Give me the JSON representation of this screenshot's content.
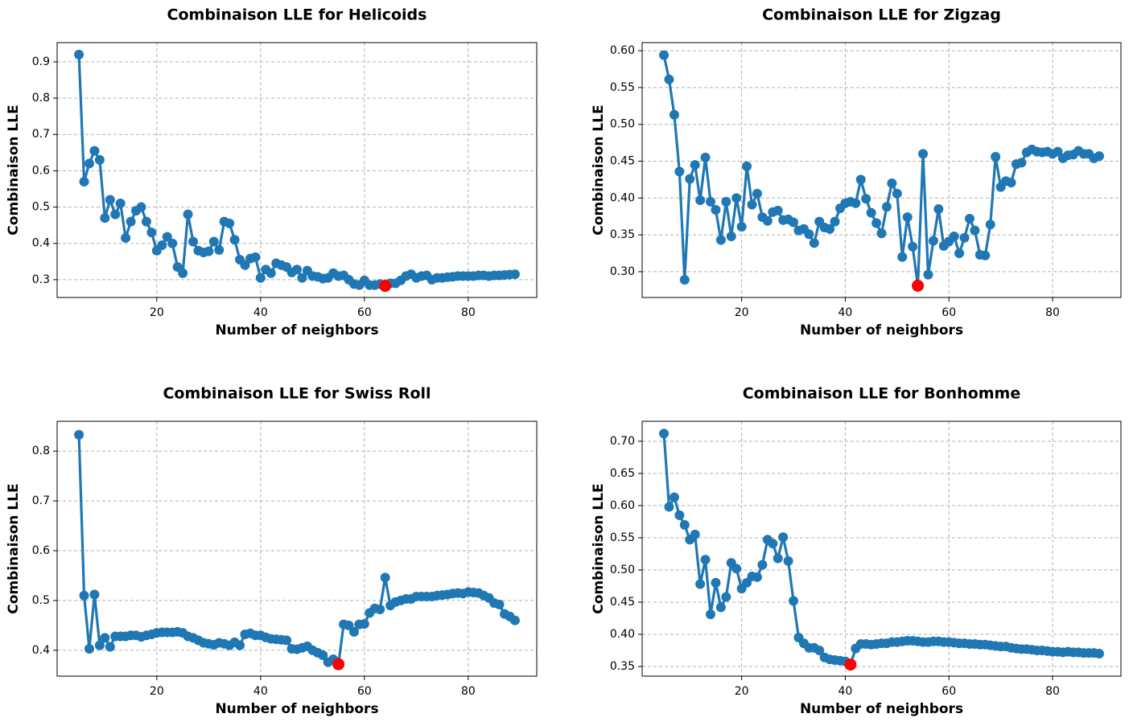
{
  "chart_data": [
    {
      "type": "line",
      "title": "Combinaison LLE for Helicoids",
      "xlabel": "Number of neighbors",
      "ylabel": "Combinaison LLE",
      "color": "#1f77b4",
      "grid": true,
      "x": [
        5,
        6,
        7,
        8,
        9,
        10,
        11,
        12,
        13,
        14,
        15,
        16,
        17,
        18,
        19,
        20,
        21,
        22,
        23,
        24,
        25,
        26,
        27,
        28,
        29,
        30,
        31,
        32,
        33,
        34,
        35,
        36,
        37,
        38,
        39,
        40,
        41,
        42,
        43,
        44,
        45,
        46,
        47,
        48,
        49,
        50,
        51,
        52,
        53,
        54,
        55,
        56,
        57,
        58,
        59,
        60,
        61,
        62,
        63,
        64,
        65,
        66,
        67,
        68,
        69,
        70,
        71,
        72,
        73,
        74,
        75,
        76,
        77,
        78,
        79,
        80,
        81,
        82,
        83,
        84,
        85,
        86,
        87,
        88,
        89
      ],
      "values": [
        0.92,
        0.57,
        0.62,
        0.655,
        0.63,
        0.47,
        0.52,
        0.48,
        0.51,
        0.415,
        0.46,
        0.49,
        0.5,
        0.46,
        0.43,
        0.38,
        0.395,
        0.418,
        0.4,
        0.335,
        0.318,
        0.48,
        0.405,
        0.38,
        0.375,
        0.378,
        0.405,
        0.382,
        0.46,
        0.455,
        0.41,
        0.355,
        0.34,
        0.358,
        0.362,
        0.305,
        0.328,
        0.318,
        0.345,
        0.34,
        0.335,
        0.32,
        0.328,
        0.305,
        0.325,
        0.31,
        0.308,
        0.303,
        0.305,
        0.318,
        0.31,
        0.312,
        0.3,
        0.288,
        0.285,
        0.298,
        0.285,
        0.285,
        0.288,
        0.283,
        0.29,
        0.29,
        0.298,
        0.31,
        0.315,
        0.305,
        0.31,
        0.312,
        0.3,
        0.305,
        0.305,
        0.307,
        0.308,
        0.31,
        0.31,
        0.31,
        0.31,
        0.312,
        0.312,
        0.31,
        0.312,
        0.312,
        0.313,
        0.314,
        0.315
      ],
      "highlight": {
        "x": 64,
        "y": 0.283,
        "color": "#ff0000"
      },
      "xlim": [
        0.8,
        93.2
      ],
      "xticks": [
        20,
        40,
        60,
        80
      ],
      "ylim": [
        0.251,
        0.953
      ],
      "yticks": [
        0.3,
        0.4,
        0.5,
        0.6,
        0.7,
        0.8,
        0.9
      ]
    },
    {
      "type": "line",
      "title": "Combinaison LLE for Zigzag",
      "xlabel": "Number of neighbors",
      "ylabel": "Combinaison LLE",
      "color": "#1f77b4",
      "grid": true,
      "x": [
        5,
        6,
        7,
        8,
        9,
        10,
        11,
        12,
        13,
        14,
        15,
        16,
        17,
        18,
        19,
        20,
        21,
        22,
        23,
        24,
        25,
        26,
        27,
        28,
        29,
        30,
        31,
        32,
        33,
        34,
        35,
        36,
        37,
        38,
        39,
        40,
        41,
        42,
        43,
        44,
        45,
        46,
        47,
        48,
        49,
        50,
        51,
        52,
        53,
        54,
        55,
        56,
        57,
        58,
        59,
        60,
        61,
        62,
        63,
        64,
        65,
        66,
        67,
        68,
        69,
        70,
        71,
        72,
        73,
        74,
        75,
        76,
        77,
        78,
        79,
        80,
        81,
        82,
        83,
        84,
        85,
        86,
        87,
        88,
        89
      ],
      "values": [
        0.594,
        0.561,
        0.513,
        0.436,
        0.289,
        0.426,
        0.445,
        0.397,
        0.455,
        0.395,
        0.384,
        0.343,
        0.395,
        0.348,
        0.4,
        0.361,
        0.443,
        0.391,
        0.406,
        0.374,
        0.369,
        0.381,
        0.383,
        0.37,
        0.371,
        0.367,
        0.356,
        0.358,
        0.351,
        0.339,
        0.368,
        0.36,
        0.358,
        0.368,
        0.386,
        0.393,
        0.395,
        0.393,
        0.425,
        0.399,
        0.38,
        0.366,
        0.352,
        0.388,
        0.42,
        0.406,
        0.32,
        0.374,
        0.334,
        0.281,
        0.46,
        0.296,
        0.342,
        0.385,
        0.335,
        0.341,
        0.348,
        0.325,
        0.346,
        0.372,
        0.356,
        0.323,
        0.322,
        0.364,
        0.456,
        0.415,
        0.423,
        0.421,
        0.446,
        0.448,
        0.462,
        0.466,
        0.463,
        0.462,
        0.463,
        0.46,
        0.463,
        0.454,
        0.458,
        0.459,
        0.464,
        0.46,
        0.46,
        0.454,
        0.457
      ],
      "highlight": {
        "x": 54,
        "y": 0.281,
        "color": "#ff0000"
      },
      "xlim": [
        0.8,
        93.2
      ],
      "xticks": [
        20,
        40,
        60,
        80
      ],
      "ylim": [
        0.265,
        0.611
      ],
      "yticks": [
        {
          "value": 0.3,
          "label": "0.30"
        },
        {
          "value": 0.35,
          "label": "0.35"
        },
        {
          "value": 0.4,
          "label": "0.40"
        },
        {
          "value": 0.45,
          "label": "0.45"
        },
        {
          "value": 0.5,
          "label": "0.50"
        },
        {
          "value": 0.55,
          "label": "0.55"
        },
        {
          "value": 0.6,
          "label": "0.60"
        }
      ]
    },
    {
      "type": "line",
      "title": "Combinaison LLE for Swiss Roll",
      "xlabel": "Number of neighbors",
      "ylabel": "Combinaison LLE",
      "color": "#1f77b4",
      "grid": true,
      "x": [
        5,
        6,
        7,
        8,
        9,
        10,
        11,
        12,
        13,
        14,
        15,
        16,
        17,
        18,
        19,
        20,
        21,
        22,
        23,
        24,
        25,
        26,
        27,
        28,
        29,
        30,
        31,
        32,
        33,
        34,
        35,
        36,
        37,
        38,
        39,
        40,
        41,
        42,
        43,
        44,
        45,
        46,
        47,
        48,
        49,
        50,
        51,
        52,
        53,
        54,
        55,
        56,
        57,
        58,
        59,
        60,
        61,
        62,
        63,
        64,
        65,
        66,
        67,
        68,
        69,
        70,
        71,
        72,
        73,
        74,
        75,
        76,
        77,
        78,
        79,
        80,
        81,
        82,
        83,
        84,
        85,
        86,
        87,
        88,
        89
      ],
      "values": [
        0.833,
        0.51,
        0.403,
        0.512,
        0.41,
        0.425,
        0.407,
        0.428,
        0.428,
        0.428,
        0.43,
        0.43,
        0.427,
        0.43,
        0.432,
        0.435,
        0.436,
        0.436,
        0.436,
        0.437,
        0.435,
        0.428,
        0.425,
        0.42,
        0.415,
        0.413,
        0.411,
        0.415,
        0.413,
        0.41,
        0.416,
        0.41,
        0.432,
        0.434,
        0.43,
        0.43,
        0.426,
        0.423,
        0.422,
        0.421,
        0.42,
        0.403,
        0.402,
        0.405,
        0.408,
        0.4,
        0.395,
        0.39,
        0.376,
        0.382,
        0.372,
        0.452,
        0.45,
        0.437,
        0.452,
        0.453,
        0.475,
        0.484,
        0.482,
        0.546,
        0.49,
        0.497,
        0.5,
        0.503,
        0.503,
        0.508,
        0.508,
        0.508,
        0.508,
        0.51,
        0.511,
        0.512,
        0.514,
        0.515,
        0.514,
        0.517,
        0.516,
        0.515,
        0.51,
        0.505,
        0.495,
        0.492,
        0.473,
        0.468,
        0.46
      ],
      "highlight": {
        "x": 55,
        "y": 0.372,
        "color": "#ff0000"
      },
      "xlim": [
        0.8,
        93.2
      ],
      "xticks": [
        20,
        40,
        60,
        80
      ],
      "ylim": [
        0.348,
        0.86
      ],
      "yticks": [
        0.4,
        0.5,
        0.6,
        0.7,
        0.8
      ]
    },
    {
      "type": "line",
      "title": "Combinaison LLE for Bonhomme",
      "xlabel": "Number of neighbors",
      "ylabel": "Combinaison LLE",
      "color": "#1f77b4",
      "grid": true,
      "x": [
        5,
        6,
        7,
        8,
        9,
        10,
        11,
        12,
        13,
        14,
        15,
        16,
        17,
        18,
        19,
        20,
        21,
        22,
        23,
        24,
        25,
        26,
        27,
        28,
        29,
        30,
        31,
        32,
        33,
        34,
        35,
        36,
        37,
        38,
        39,
        40,
        41,
        42,
        43,
        44,
        45,
        46,
        47,
        48,
        49,
        50,
        51,
        52,
        53,
        54,
        55,
        56,
        57,
        58,
        59,
        60,
        61,
        62,
        63,
        64,
        65,
        66,
        67,
        68,
        69,
        70,
        71,
        72,
        73,
        74,
        75,
        76,
        77,
        78,
        79,
        80,
        81,
        82,
        83,
        84,
        85,
        86,
        87,
        88,
        89
      ],
      "values": [
        0.712,
        0.598,
        0.613,
        0.585,
        0.57,
        0.547,
        0.555,
        0.478,
        0.516,
        0.431,
        0.48,
        0.442,
        0.458,
        0.511,
        0.502,
        0.471,
        0.48,
        0.49,
        0.489,
        0.508,
        0.547,
        0.541,
        0.518,
        0.551,
        0.514,
        0.452,
        0.395,
        0.386,
        0.379,
        0.379,
        0.375,
        0.364,
        0.361,
        0.36,
        0.359,
        0.358,
        0.353,
        0.378,
        0.385,
        0.385,
        0.384,
        0.385,
        0.386,
        0.386,
        0.388,
        0.388,
        0.389,
        0.39,
        0.39,
        0.389,
        0.388,
        0.388,
        0.389,
        0.389,
        0.388,
        0.388,
        0.387,
        0.386,
        0.386,
        0.385,
        0.385,
        0.384,
        0.384,
        0.383,
        0.382,
        0.381,
        0.381,
        0.379,
        0.378,
        0.377,
        0.377,
        0.376,
        0.375,
        0.375,
        0.374,
        0.373,
        0.373,
        0.372,
        0.373,
        0.372,
        0.372,
        0.371,
        0.371,
        0.371,
        0.37
      ],
      "highlight": {
        "x": 41,
        "y": 0.353,
        "color": "#ff0000"
      },
      "xlim": [
        0.8,
        93.2
      ],
      "xticks": [
        20,
        40,
        60,
        80
      ],
      "ylim": [
        0.335,
        0.731
      ],
      "yticks": [
        {
          "value": 0.35,
          "label": "0.35"
        },
        {
          "value": 0.4,
          "label": "0.40"
        },
        {
          "value": 0.45,
          "label": "0.45"
        },
        {
          "value": 0.5,
          "label": "0.50"
        },
        {
          "value": 0.55,
          "label": "0.55"
        },
        {
          "value": 0.6,
          "label": "0.60"
        },
        {
          "value": 0.65,
          "label": "0.65"
        },
        {
          "value": 0.7,
          "label": "0.70"
        }
      ]
    }
  ]
}
